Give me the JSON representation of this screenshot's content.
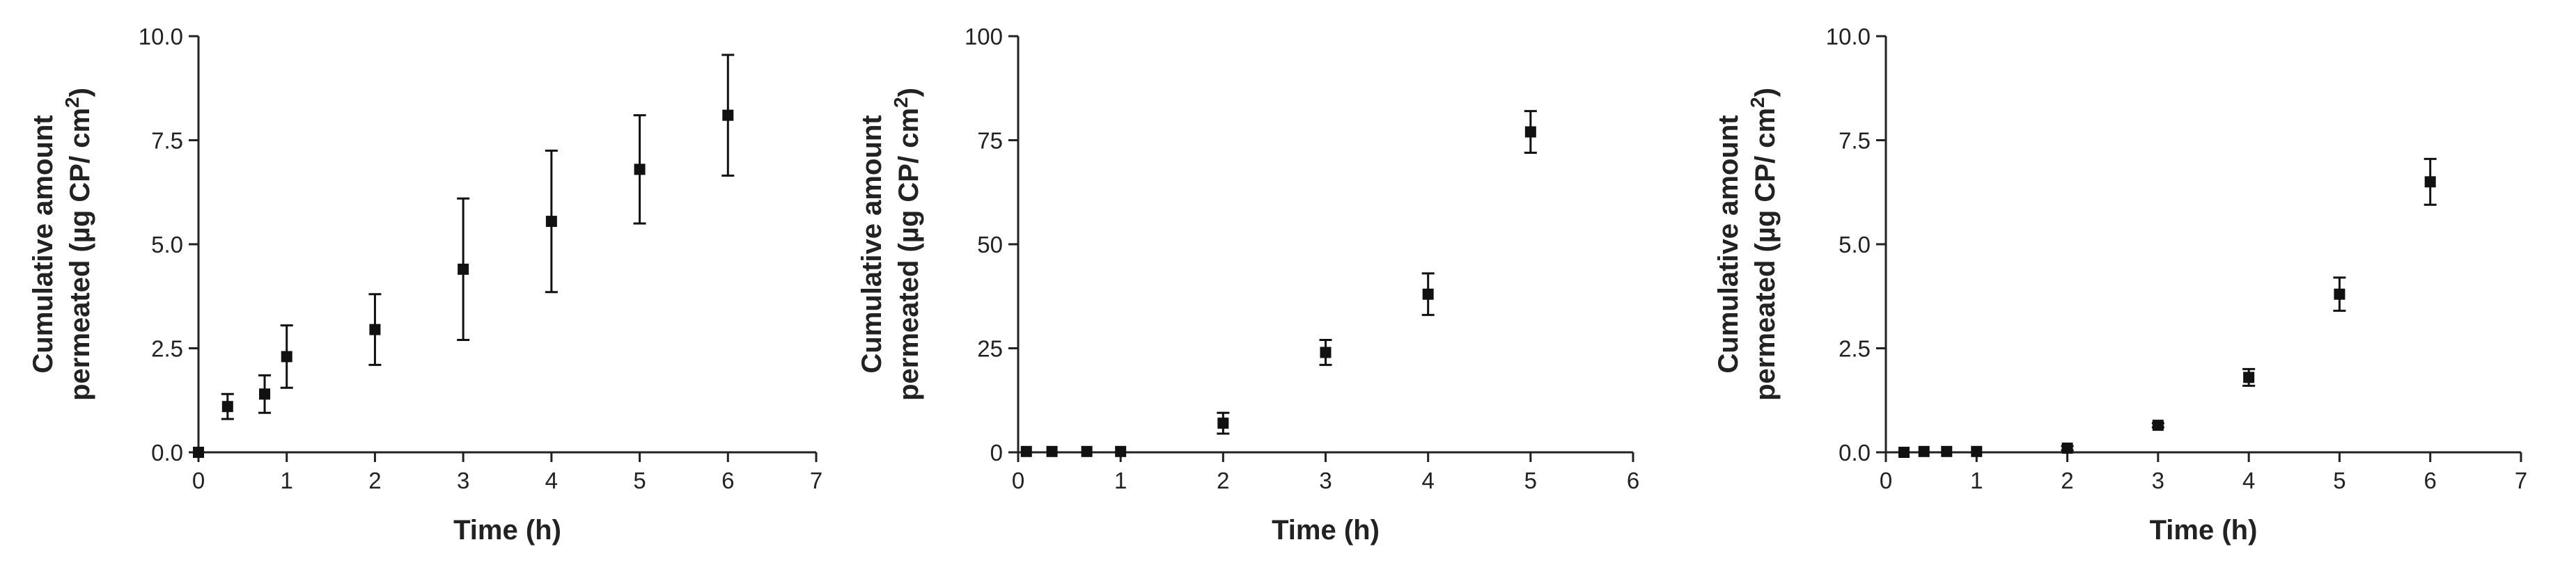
{
  "chart_data": [
    {
      "type": "scatter",
      "xlabel": "Time (h)",
      "ylabel_line1": "Cumulative amount",
      "ylabel_line2": "permeated (µg CP/ cm",
      "ylabel_sup": "2",
      "ylabel_close": ")",
      "xlim": [
        0,
        7
      ],
      "ylim": [
        0,
        10
      ],
      "xticks": [
        0,
        1,
        2,
        3,
        4,
        5,
        6,
        7
      ],
      "yticks": [
        0,
        2.5,
        5,
        7.5,
        10
      ],
      "ytick_labels": [
        "0.0",
        "2.5",
        "5.0",
        "7.5",
        "10.0"
      ],
      "grid": false,
      "x": [
        0,
        0.33,
        0.75,
        1,
        2,
        3,
        4,
        5,
        6
      ],
      "y": [
        0,
        1.1,
        1.4,
        2.3,
        2.95,
        4.4,
        5.55,
        6.8,
        8.1
      ],
      "error": [
        0,
        0.3,
        0.45,
        0.75,
        0.85,
        1.7,
        1.7,
        1.3,
        1.45
      ]
    },
    {
      "type": "scatter",
      "xlabel": "Time (h)",
      "ylabel_line1": "Cumulative amount",
      "ylabel_line2": "permeated (µg CP/ cm",
      "ylabel_sup": "2",
      "ylabel_close": ")",
      "xlim": [
        0,
        6
      ],
      "ylim": [
        0,
        100
      ],
      "xticks": [
        0,
        1,
        2,
        3,
        4,
        5,
        6
      ],
      "yticks": [
        0,
        25,
        50,
        75,
        100
      ],
      "ytick_labels": [
        "0",
        "25",
        "50",
        "75",
        "100"
      ],
      "grid": false,
      "x": [
        0.08,
        0.33,
        0.67,
        1,
        2,
        3,
        4,
        5
      ],
      "y": [
        0.2,
        0.2,
        0.2,
        0.2,
        7,
        24,
        38,
        77
      ],
      "error": [
        0,
        0,
        0,
        0,
        2.5,
        3,
        5,
        5
      ]
    },
    {
      "type": "scatter",
      "xlabel": "Time (h)",
      "ylabel_line1": "Cumulative amount",
      "ylabel_line2": "permeated (µg CP/ cm",
      "ylabel_sup": "2",
      "ylabel_close": ")",
      "xlim": [
        0,
        7
      ],
      "ylim": [
        0,
        10
      ],
      "xticks": [
        0,
        1,
        2,
        3,
        4,
        5,
        6,
        7
      ],
      "yticks": [
        0,
        2.5,
        5,
        7.5,
        10
      ],
      "ytick_labels": [
        "0.0",
        "2.5",
        "5.0",
        "7.5",
        "10.0"
      ],
      "grid": false,
      "x": [
        0.2,
        0.42,
        0.67,
        1,
        2,
        3,
        4,
        5,
        6
      ],
      "y": [
        0,
        0.02,
        0.02,
        0.02,
        0.1,
        0.65,
        1.8,
        3.8,
        6.5
      ],
      "error": [
        0,
        0,
        0,
        0,
        0.05,
        0.05,
        0.2,
        0.4,
        0.55
      ]
    }
  ]
}
